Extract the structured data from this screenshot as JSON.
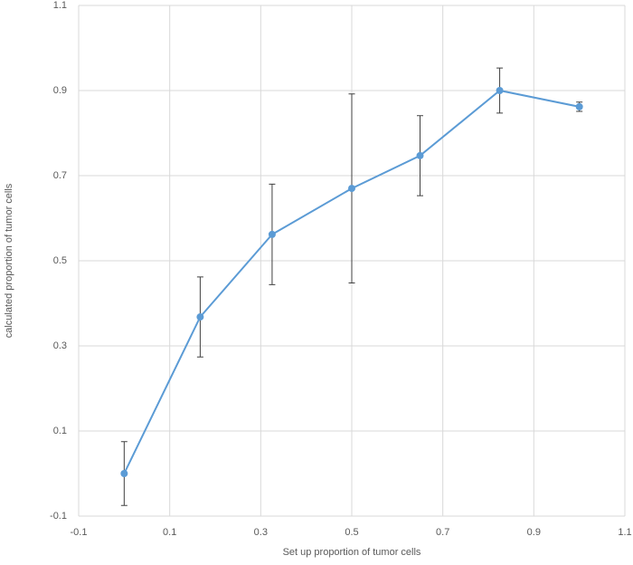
{
  "chart_data": {
    "type": "scatter",
    "xlabel": "Set up proportion of tumor cells",
    "ylabel": "calculated proportion of tumor cells",
    "x": [
      0.0,
      0.167,
      0.325,
      0.5,
      0.65,
      0.825,
      1.0
    ],
    "series": [
      {
        "color": "#5b9bd5",
        "values": [
          0.0,
          0.368,
          0.562,
          0.67,
          0.747,
          0.9,
          0.862
        ],
        "errors": [
          0.075,
          0.094,
          0.118,
          0.222,
          0.094,
          0.053,
          0.011
        ]
      }
    ],
    "xlim": [
      -0.1,
      1.1
    ],
    "xticks": [
      -0.1,
      0.1,
      0.3,
      0.5,
      0.7,
      0.9,
      1.1
    ],
    "ylim": [
      -0.1,
      1.1
    ],
    "yticks": [
      -0.1,
      0.1,
      0.3,
      0.5,
      0.7,
      0.9,
      1.1
    ],
    "grid": true
  }
}
